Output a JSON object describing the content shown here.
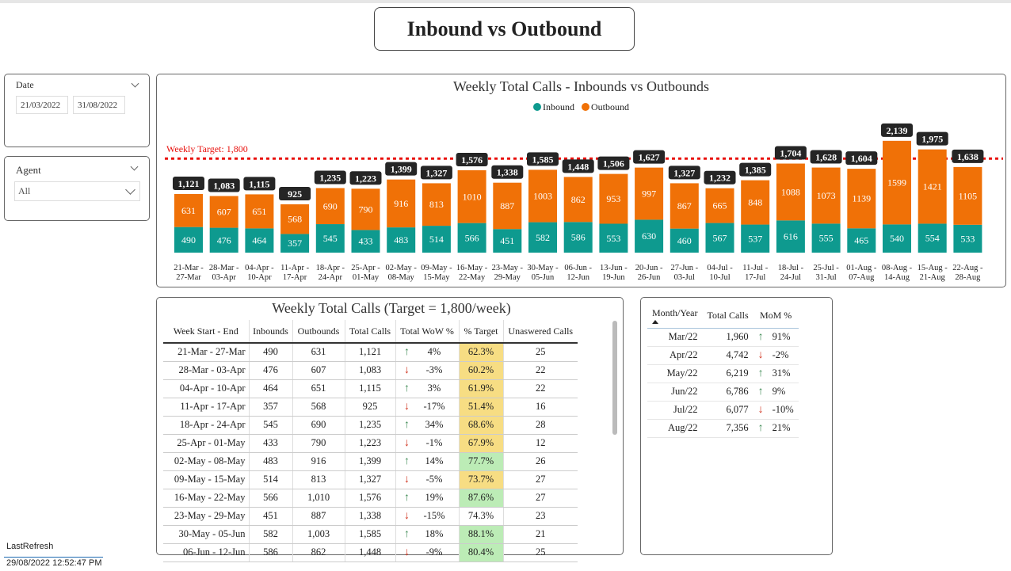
{
  "header": {
    "title": "Inbound vs Outbound"
  },
  "slicers": {
    "date": {
      "title": "Date",
      "start": "21/03/2022",
      "end": "31/08/2022"
    },
    "agent": {
      "title": "Agent",
      "value": "All"
    }
  },
  "colors": {
    "inbound": "#0e9a8f",
    "outbound": "#f07107",
    "target_line": "#e8100c",
    "up_arrow": "#3d8a53",
    "down_arrow": "#d0311c",
    "pct_yellow": "#f7dd83",
    "pct_green": "#bcecb6"
  },
  "chart": {
    "title": "Weekly Total Calls - Inbounds vs Outbounds",
    "legend": {
      "inbound": "Inbound",
      "outbound": "Outbound"
    },
    "target_label": "Weekly Target: 1,800"
  },
  "chart_data": {
    "type": "bar",
    "stacked": true,
    "title": "Weekly Total Calls - Inbounds vs Outbounds",
    "categories": [
      [
        "21-Mar -",
        "27-Mar"
      ],
      [
        "28-Mar -",
        "03-Apr"
      ],
      [
        "04-Apr -",
        "10-Apr"
      ],
      [
        "11-Apr -",
        "17-Apr"
      ],
      [
        "18-Apr -",
        "24-Apr"
      ],
      [
        "25-Apr -",
        "01-May"
      ],
      [
        "02-May -",
        "08-May"
      ],
      [
        "09-May -",
        "15-May"
      ],
      [
        "16-May -",
        "22-May"
      ],
      [
        "23-May -",
        "29-May"
      ],
      [
        "30-May -",
        "05-Jun"
      ],
      [
        "06-Jun -",
        "12-Jun"
      ],
      [
        "13-Jun -",
        "19-Jun"
      ],
      [
        "20-Jun -",
        "26-Jun"
      ],
      [
        "27-Jun -",
        "03-Jul"
      ],
      [
        "04-Jul -",
        "10-Jul"
      ],
      [
        "11-Jul -",
        "17-Jul"
      ],
      [
        "18-Jul -",
        "24-Jul"
      ],
      [
        "25-Jul -",
        "31-Jul"
      ],
      [
        "01-Aug -",
        "07-Aug"
      ],
      [
        "08-Aug -",
        "14-Aug"
      ],
      [
        "15-Aug -",
        "21-Aug"
      ],
      [
        "22-Aug -",
        "28-Aug"
      ]
    ],
    "series": [
      {
        "name": "Inbound",
        "values": [
          490,
          476,
          464,
          357,
          545,
          433,
          483,
          514,
          566,
          451,
          582,
          586,
          553,
          630,
          460,
          567,
          537,
          616,
          555,
          465,
          540,
          554,
          533
        ]
      },
      {
        "name": "Outbound",
        "values": [
          631,
          607,
          651,
          568,
          690,
          790,
          916,
          813,
          1010,
          887,
          1003,
          862,
          953,
          997,
          867,
          665,
          848,
          1088,
          1073,
          1139,
          1599,
          1421,
          1105
        ]
      }
    ],
    "totals": [
      "1,121",
      "1,083",
      "1,115",
      "925",
      "1,235",
      "1,223",
      "1,399",
      "1,327",
      "1,576",
      "1,338",
      "1,585",
      "1,448",
      "1,506",
      "1,627",
      "1,327",
      "1,232",
      "1,385",
      "1,704",
      "1,628",
      "1,604",
      "2,139",
      "1,975",
      "1,638"
    ],
    "target": 1800,
    "legend_position": "top-center",
    "grid": false
  },
  "weekly_table": {
    "title": "Weekly Total Calls (Target = 1,800/week)",
    "headers": [
      "Week Start - End",
      "Inbounds",
      "Outbounds",
      "Total Calls",
      "Total WoW %",
      "% Target",
      "Unaswered Calls"
    ],
    "rows": [
      {
        "week": "21-Mar - 27-Mar",
        "inb": "490",
        "outb": "631",
        "total": "1,121",
        "dir": "up",
        "wow": "4%",
        "pct": "62.3%",
        "tone": "yellow",
        "unans": "25"
      },
      {
        "week": "28-Mar - 03-Apr",
        "inb": "476",
        "outb": "607",
        "total": "1,083",
        "dir": "down",
        "wow": "-3%",
        "pct": "60.2%",
        "tone": "yellow",
        "unans": "22"
      },
      {
        "week": "04-Apr - 10-Apr",
        "inb": "464",
        "outb": "651",
        "total": "1,115",
        "dir": "up",
        "wow": "3%",
        "pct": "61.9%",
        "tone": "yellow",
        "unans": "22"
      },
      {
        "week": "11-Apr - 17-Apr",
        "inb": "357",
        "outb": "568",
        "total": "925",
        "dir": "down",
        "wow": "-17%",
        "pct": "51.4%",
        "tone": "yellow",
        "unans": "16"
      },
      {
        "week": "18-Apr - 24-Apr",
        "inb": "545",
        "outb": "690",
        "total": "1,235",
        "dir": "up",
        "wow": "34%",
        "pct": "68.6%",
        "tone": "yellow",
        "unans": "28"
      },
      {
        "week": "25-Apr - 01-May",
        "inb": "433",
        "outb": "790",
        "total": "1,223",
        "dir": "down",
        "wow": "-1%",
        "pct": "67.9%",
        "tone": "yellow",
        "unans": "12"
      },
      {
        "week": "02-May - 08-May",
        "inb": "483",
        "outb": "916",
        "total": "1,399",
        "dir": "up",
        "wow": "14%",
        "pct": "77.7%",
        "tone": "green",
        "unans": "26"
      },
      {
        "week": "09-May - 15-May",
        "inb": "514",
        "outb": "813",
        "total": "1,327",
        "dir": "down",
        "wow": "-5%",
        "pct": "73.7%",
        "tone": "yellow",
        "unans": "27"
      },
      {
        "week": "16-May - 22-May",
        "inb": "566",
        "outb": "1,010",
        "total": "1,576",
        "dir": "up",
        "wow": "19%",
        "pct": "87.6%",
        "tone": "green",
        "unans": "27"
      },
      {
        "week": "23-May - 29-May",
        "inb": "451",
        "outb": "887",
        "total": "1,338",
        "dir": "down",
        "wow": "-15%",
        "pct": "74.3%",
        "tone": "none",
        "unans": "23"
      },
      {
        "week": "30-May - 05-Jun",
        "inb": "582",
        "outb": "1,003",
        "total": "1,585",
        "dir": "up",
        "wow": "18%",
        "pct": "88.1%",
        "tone": "green",
        "unans": "21"
      },
      {
        "week": "06-Jun - 12-Jun",
        "inb": "586",
        "outb": "862",
        "total": "1,448",
        "dir": "down",
        "wow": "-9%",
        "pct": "80.4%",
        "tone": "green",
        "unans": "25"
      }
    ]
  },
  "monthly_table": {
    "headers": [
      "Month/Year",
      "Total Calls",
      "MoM %"
    ],
    "rows": [
      {
        "month": "Mar/22",
        "total": "1,960",
        "dir": "up",
        "mom": "91%"
      },
      {
        "month": "Apr/22",
        "total": "4,742",
        "dir": "down",
        "mom": "-2%"
      },
      {
        "month": "May/22",
        "total": "6,219",
        "dir": "up",
        "mom": "31%"
      },
      {
        "month": "Jun/22",
        "total": "6,786",
        "dir": "up",
        "mom": "9%"
      },
      {
        "month": "Jul/22",
        "total": "6,077",
        "dir": "down",
        "mom": "-10%"
      },
      {
        "month": "Aug/22",
        "total": "7,356",
        "dir": "up",
        "mom": "21%"
      }
    ]
  },
  "footer": {
    "last_refresh_label": "LastRefresh",
    "last_refresh_value": "29/08/2022 12:52:47 PM"
  }
}
